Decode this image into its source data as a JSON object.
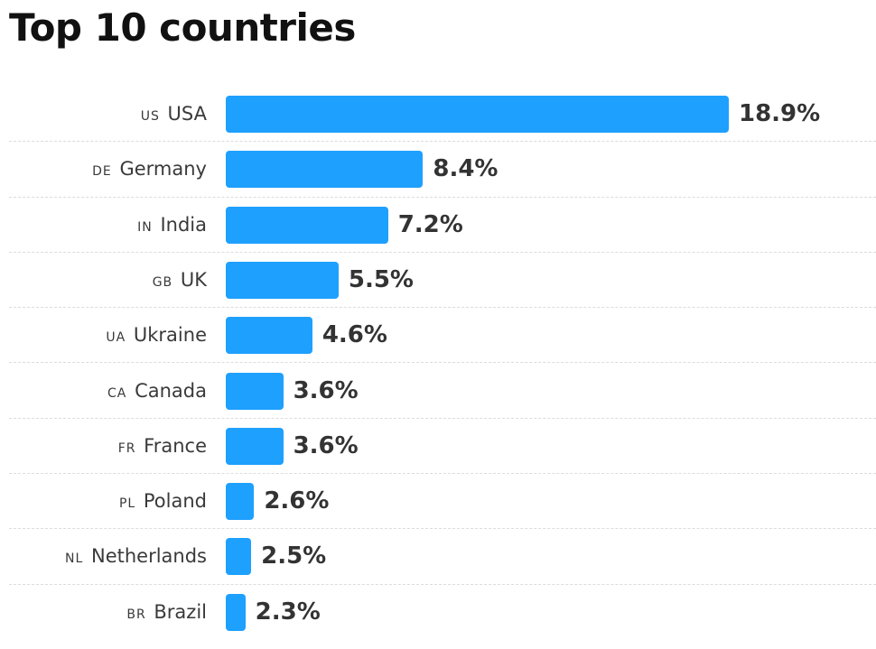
{
  "title": "Top 10 countries",
  "chart_data": {
    "type": "bar",
    "orientation": "horizontal",
    "title": "Top 10 countries",
    "categories": [
      "USA",
      "Germany",
      "India",
      "UK",
      "Ukraine",
      "Canada",
      "France",
      "Poland",
      "Netherlands",
      "Brazil"
    ],
    "codes": [
      "US",
      "DE",
      "IN",
      "GB",
      "UA",
      "CA",
      "FR",
      "PL",
      "NL",
      "BR"
    ],
    "values": [
      18.9,
      8.4,
      7.2,
      5.5,
      4.6,
      3.6,
      3.6,
      2.6,
      2.5,
      2.3
    ],
    "value_labels": [
      "18.9%",
      "8.4%",
      "7.2%",
      "5.5%",
      "4.6%",
      "3.6%",
      "3.6%",
      "2.6%",
      "2.5%",
      "2.3%"
    ],
    "unit": "%",
    "xlim": [
      2.0,
      18.9
    ],
    "grid": false,
    "legend": "none",
    "bar_color": "#1ea0ff"
  }
}
